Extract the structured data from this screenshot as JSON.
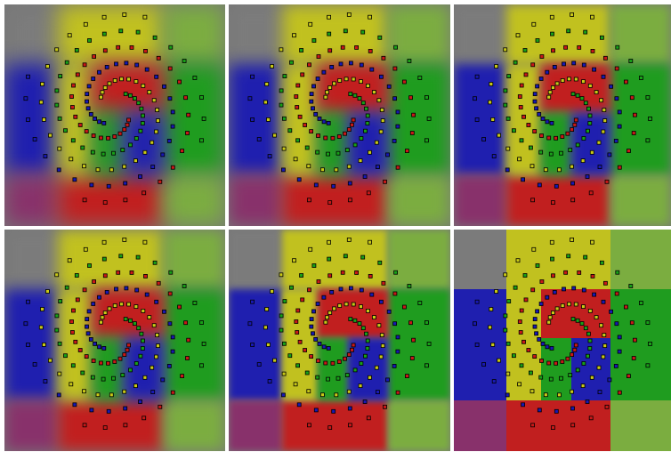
{
  "figure": {
    "rows": 2,
    "cols": 3,
    "panel_count": 6
  },
  "colors": {
    "red": "#c81818",
    "green": "#18a018",
    "blue": "#1818b4",
    "yellow": "#c8c818",
    "gray": "#7c7c7c",
    "lightgreen": "#7cb23c",
    "purple": "#8a2c6a"
  },
  "panels": [
    {
      "id": "p1",
      "sharpness": 0.15
    },
    {
      "id": "p2",
      "sharpness": 0.35
    },
    {
      "id": "p3",
      "sharpness": 0.6
    },
    {
      "id": "p4",
      "sharpness": 0.45
    },
    {
      "id": "p5",
      "sharpness": 0.75
    },
    {
      "id": "p6",
      "sharpness": 1.0
    }
  ]
}
